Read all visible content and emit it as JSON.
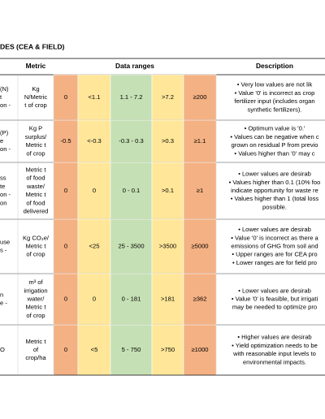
{
  "title": "DES (CEA & FIELD)",
  "table": {
    "headers": [
      "Metric",
      "Data ranges",
      "Description"
    ],
    "rows": [
      {
        "label": [
          "(N)",
          "t",
          "on -"
        ],
        "metric": [
          "Kg",
          "N/Metric",
          "t of crop"
        ],
        "ranges": [
          "0",
          "<1.1",
          "1.1 - 7.2",
          ">7.2",
          "≥200"
        ],
        "description": [
          "• Very low values are not lik",
          "• Value '0' is incorrect as crop",
          "fertilizer input (includes organ",
          "synthetic fertilizers)."
        ]
      },
      {
        "label": [
          "(P)",
          "e",
          "on -"
        ],
        "metric": [
          "Kg P",
          "surplus/",
          "Metric t",
          "of crop"
        ],
        "ranges": [
          "-0.5",
          "<-0.3",
          "-0.3 - 0.3",
          ">0.3",
          "≥1.1"
        ],
        "description": [
          "• Optimum value is '0.'",
          "• Values can be negative when c",
          "grown on residual P from previo",
          "• Values higher than '0' may c"
        ]
      },
      {
        "label": [
          "ss",
          "te",
          "on -",
          "on"
        ],
        "metric": [
          "Metric t",
          "of food",
          "waste/",
          "Metric t",
          "of food",
          "delivered"
        ],
        "ranges": [
          "0",
          "0",
          "0 - 0.1",
          ">0.1",
          "≥1"
        ],
        "description": [
          "• Lower values are desirab",
          "• Values higher than 0.1 (10% foo",
          "indicate opportunity for waste re",
          "• Values higher than 1 (total loss",
          "possible."
        ]
      },
      {
        "label": [
          "use",
          "s -"
        ],
        "metric": [
          "Kg CO₂e/",
          "Metric t",
          "of crop"
        ],
        "ranges": [
          "0",
          "<25",
          "25 - 3500",
          ">3500",
          "≥5000"
        ],
        "description": [
          "• Lower values are desirab",
          "• Value '0' is incorrect as there a",
          "emissions of GHG from soil and",
          "• Upper ranges are for CEA pro",
          "• Lower ranges are for field pro"
        ]
      },
      {
        "label": [
          "n",
          "e -"
        ],
        "metric": [
          "m³ of",
          "irrigation",
          "water/",
          "Metric t",
          "of crop"
        ],
        "ranges": [
          "0",
          "0",
          "0 - 181",
          ">181",
          "≥362"
        ],
        "description": [
          "• Lower values are desirab",
          "• Value '0' is feasible, but irrigati",
          "may be needed to optimize pro"
        ]
      },
      {
        "label": [
          "O"
        ],
        "metric": [
          "Metric t",
          "of",
          "crop/ha"
        ],
        "ranges": [
          "0",
          "<5",
          "5 - 750",
          ">750",
          "≥1000"
        ],
        "description": [
          "• Higher values are desirab",
          "• Yield optimization needs to be",
          "with reasonable input levels to",
          "environmental impacts."
        ]
      }
    ]
  }
}
